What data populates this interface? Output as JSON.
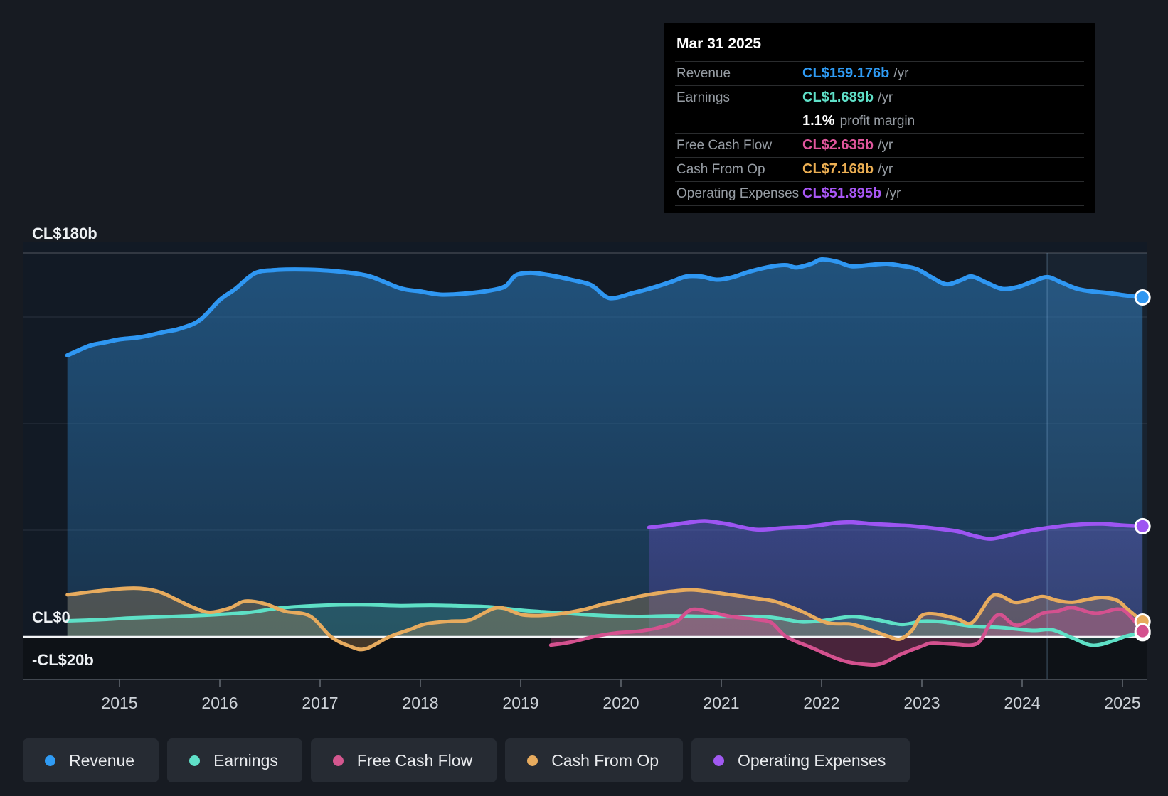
{
  "tooltip": {
    "date": "Mar 31 2025",
    "rows": [
      {
        "label": "Revenue",
        "value": "CL$159.176b",
        "suffix": "/yr",
        "color": "#2f9bf4"
      },
      {
        "label": "Earnings",
        "value": "CL$1.689b",
        "suffix": "/yr",
        "color": "#5fe0c8",
        "extra": {
          "value": "1.1%",
          "label": "profit margin"
        }
      },
      {
        "label": "Free Cash Flow",
        "value": "CL$2.635b",
        "suffix": "/yr",
        "color": "#e0569d"
      },
      {
        "label": "Cash From Op",
        "value": "CL$7.168b",
        "suffix": "/yr",
        "color": "#ecaf53"
      },
      {
        "label": "Operating Expenses",
        "value": "CL$51.895b",
        "suffix": "/yr",
        "color": "#a957f5"
      }
    ]
  },
  "y_axis": {
    "labels": [
      {
        "text": "CL$180b",
        "value": 180
      },
      {
        "text": "CL$0",
        "value": 0
      },
      {
        "text": "-CL$20b",
        "value": -20
      }
    ],
    "unlabeled_gridlines": [
      150,
      100,
      50
    ]
  },
  "x_axis": {
    "years": [
      "2015",
      "2016",
      "2017",
      "2018",
      "2019",
      "2020",
      "2021",
      "2022",
      "2023",
      "2024",
      "2025"
    ]
  },
  "legend": [
    {
      "label": "Revenue",
      "color": "#2f9bf4"
    },
    {
      "label": "Earnings",
      "color": "#5fe0c8"
    },
    {
      "label": "Free Cash Flow",
      "color": "#d4578f"
    },
    {
      "label": "Cash From Op",
      "color": "#e7ab5e"
    },
    {
      "label": "Operating Expenses",
      "color": "#a159f2"
    }
  ],
  "chart_data": {
    "type": "line",
    "title": "Earnings and revenue history (CL$ billions per year)",
    "x_range": [
      2014.35,
      2025.35
    ],
    "ylim": [
      -20,
      180
    ],
    "y_unit": "CL$b",
    "grid": true,
    "legend_position": "bottom",
    "highlight_band_start_year": 2024.25,
    "series": [
      {
        "name": "Revenue",
        "color": "#2f97f2",
        "points": [
          [
            2014.48,
            132
          ],
          [
            2014.7,
            136.5
          ],
          [
            2014.85,
            138
          ],
          [
            2015.0,
            139.5
          ],
          [
            2015.2,
            140.5
          ],
          [
            2015.45,
            143
          ],
          [
            2015.6,
            144.5
          ],
          [
            2015.8,
            148.5
          ],
          [
            2016.0,
            158
          ],
          [
            2016.15,
            163
          ],
          [
            2016.35,
            170.5
          ],
          [
            2016.55,
            172
          ],
          [
            2016.75,
            172.3
          ],
          [
            2017.0,
            172
          ],
          [
            2017.25,
            171
          ],
          [
            2017.5,
            169
          ],
          [
            2017.8,
            163.5
          ],
          [
            2018.0,
            162
          ],
          [
            2018.2,
            160.5
          ],
          [
            2018.45,
            161
          ],
          [
            2018.7,
            162.5
          ],
          [
            2018.85,
            164.5
          ],
          [
            2018.95,
            169.5
          ],
          [
            2019.1,
            170.7
          ],
          [
            2019.3,
            169.5
          ],
          [
            2019.5,
            167.5
          ],
          [
            2019.7,
            165
          ],
          [
            2019.85,
            159.5
          ],
          [
            2019.95,
            159
          ],
          [
            2020.1,
            161
          ],
          [
            2020.3,
            163.5
          ],
          [
            2020.5,
            166.5
          ],
          [
            2020.65,
            169
          ],
          [
            2020.8,
            169
          ],
          [
            2020.95,
            167.5
          ],
          [
            2021.1,
            168.5
          ],
          [
            2021.3,
            171.5
          ],
          [
            2021.5,
            173.7
          ],
          [
            2021.65,
            174.3
          ],
          [
            2021.75,
            173.2
          ],
          [
            2021.9,
            175
          ],
          [
            2022.0,
            177
          ],
          [
            2022.15,
            176
          ],
          [
            2022.3,
            173.8
          ],
          [
            2022.5,
            174.5
          ],
          [
            2022.65,
            175
          ],
          [
            2022.8,
            174
          ],
          [
            2022.95,
            172.5
          ],
          [
            2023.1,
            168.5
          ],
          [
            2023.25,
            165.3
          ],
          [
            2023.4,
            167.5
          ],
          [
            2023.5,
            169
          ],
          [
            2023.65,
            166
          ],
          [
            2023.8,
            163.2
          ],
          [
            2023.95,
            164
          ],
          [
            2024.1,
            166.5
          ],
          [
            2024.25,
            168.7
          ],
          [
            2024.4,
            166
          ],
          [
            2024.55,
            163.2
          ],
          [
            2024.7,
            162
          ],
          [
            2024.85,
            161.3
          ],
          [
            2025.0,
            160.3
          ],
          [
            2025.2,
            159.176
          ]
        ]
      },
      {
        "name": "Operating Expenses",
        "color": "#9d55f2",
        "points": [
          [
            2020.28,
            51.3
          ],
          [
            2020.5,
            52.5
          ],
          [
            2020.7,
            53.8
          ],
          [
            2020.85,
            54.3
          ],
          [
            2021.05,
            53
          ],
          [
            2021.35,
            50.3
          ],
          [
            2021.6,
            51
          ],
          [
            2021.8,
            51.5
          ],
          [
            2022.0,
            52.5
          ],
          [
            2022.15,
            53.5
          ],
          [
            2022.3,
            53.8
          ],
          [
            2022.5,
            53
          ],
          [
            2022.7,
            52.5
          ],
          [
            2022.9,
            52
          ],
          [
            2023.1,
            51
          ],
          [
            2023.35,
            49.5
          ],
          [
            2023.55,
            47
          ],
          [
            2023.7,
            46
          ],
          [
            2023.9,
            48
          ],
          [
            2024.1,
            50
          ],
          [
            2024.4,
            52
          ],
          [
            2024.6,
            52.8
          ],
          [
            2024.8,
            53
          ],
          [
            2025.0,
            52.3
          ],
          [
            2025.2,
            51.895
          ]
        ]
      },
      {
        "name": "Earnings",
        "color": "#5ee0c6",
        "points": [
          [
            2014.48,
            7.5
          ],
          [
            2014.8,
            8
          ],
          [
            2015.1,
            8.8
          ],
          [
            2015.4,
            9.3
          ],
          [
            2015.7,
            9.8
          ],
          [
            2016.0,
            10.5
          ],
          [
            2016.3,
            11.5
          ],
          [
            2016.6,
            13.5
          ],
          [
            2016.9,
            14.5
          ],
          [
            2017.2,
            15
          ],
          [
            2017.5,
            15
          ],
          [
            2017.8,
            14.6
          ],
          [
            2018.1,
            14.8
          ],
          [
            2018.4,
            14.5
          ],
          [
            2018.7,
            14
          ],
          [
            2019.0,
            12.5
          ],
          [
            2019.3,
            11.5
          ],
          [
            2019.6,
            10.5
          ],
          [
            2019.9,
            9.8
          ],
          [
            2020.2,
            9.5
          ],
          [
            2020.5,
            9.8
          ],
          [
            2020.8,
            9.6
          ],
          [
            2021.1,
            9.4
          ],
          [
            2021.4,
            9.5
          ],
          [
            2021.6,
            8.5
          ],
          [
            2021.8,
            7
          ],
          [
            2022.0,
            7.5
          ],
          [
            2022.3,
            9.4
          ],
          [
            2022.55,
            8
          ],
          [
            2022.8,
            5.8
          ],
          [
            2023.0,
            7.3
          ],
          [
            2023.2,
            7
          ],
          [
            2023.5,
            5
          ],
          [
            2023.8,
            4.3
          ],
          [
            2024.1,
            3
          ],
          [
            2024.3,
            3.3
          ],
          [
            2024.5,
            -0.5
          ],
          [
            2024.7,
            -4
          ],
          [
            2024.9,
            -2
          ],
          [
            2025.05,
            0.5
          ],
          [
            2025.2,
            1.689
          ]
        ]
      },
      {
        "name": "Cash From Op",
        "color": "#e7ab5e",
        "points": [
          [
            2014.48,
            19.7
          ],
          [
            2014.7,
            21
          ],
          [
            2015.0,
            22.5
          ],
          [
            2015.2,
            22.7
          ],
          [
            2015.4,
            21
          ],
          [
            2015.6,
            16.7
          ],
          [
            2015.75,
            13.5
          ],
          [
            2015.9,
            11.5
          ],
          [
            2016.1,
            13.5
          ],
          [
            2016.25,
            16.7
          ],
          [
            2016.45,
            15.5
          ],
          [
            2016.65,
            12
          ],
          [
            2016.9,
            9.7
          ],
          [
            2017.11,
            0
          ],
          [
            2017.3,
            -4.5
          ],
          [
            2017.45,
            -5.7
          ],
          [
            2017.69,
            0
          ],
          [
            2017.9,
            3.5
          ],
          [
            2018.05,
            6
          ],
          [
            2018.3,
            7.3
          ],
          [
            2018.5,
            8
          ],
          [
            2018.77,
            13.7
          ],
          [
            2019.02,
            10.3
          ],
          [
            2019.3,
            10.3
          ],
          [
            2019.6,
            12.5
          ],
          [
            2019.82,
            15.3
          ],
          [
            2020.0,
            17
          ],
          [
            2020.22,
            19.3
          ],
          [
            2020.45,
            21
          ],
          [
            2020.7,
            22
          ],
          [
            2020.9,
            21
          ],
          [
            2021.1,
            19.7
          ],
          [
            2021.35,
            18
          ],
          [
            2021.55,
            16.4
          ],
          [
            2021.8,
            12
          ],
          [
            2022.05,
            6.6
          ],
          [
            2022.3,
            5.9
          ],
          [
            2022.5,
            3
          ],
          [
            2022.65,
            0.5
          ],
          [
            2022.78,
            -1.1
          ],
          [
            2022.9,
            3
          ],
          [
            2023.0,
            10
          ],
          [
            2023.15,
            10.6
          ],
          [
            2023.35,
            8.5
          ],
          [
            2023.5,
            6.6
          ],
          [
            2023.68,
            18.3
          ],
          [
            2023.78,
            19.3
          ],
          [
            2023.92,
            16.2
          ],
          [
            2024.05,
            17
          ],
          [
            2024.2,
            18.9
          ],
          [
            2024.35,
            17
          ],
          [
            2024.5,
            16.2
          ],
          [
            2024.65,
            17.5
          ],
          [
            2024.8,
            18.5
          ],
          [
            2024.95,
            17
          ],
          [
            2025.05,
            13
          ],
          [
            2025.2,
            7.168
          ]
        ]
      },
      {
        "name": "Free Cash Flow",
        "color": "#d4518f",
        "points": [
          [
            2019.3,
            -3.9
          ],
          [
            2019.5,
            -2.5
          ],
          [
            2019.75,
            0.3
          ],
          [
            2019.95,
            1.8
          ],
          [
            2020.15,
            2.5
          ],
          [
            2020.35,
            4
          ],
          [
            2020.55,
            7
          ],
          [
            2020.7,
            12.7
          ],
          [
            2020.9,
            11.5
          ],
          [
            2021.1,
            9.5
          ],
          [
            2021.35,
            8.1
          ],
          [
            2021.5,
            6.6
          ],
          [
            2021.65,
            0
          ],
          [
            2021.9,
            -5.1
          ],
          [
            2022.2,
            -11
          ],
          [
            2022.45,
            -13
          ],
          [
            2022.6,
            -12.5
          ],
          [
            2022.8,
            -8
          ],
          [
            2023.0,
            -4.4
          ],
          [
            2023.1,
            -2.9
          ],
          [
            2023.3,
            -3.4
          ],
          [
            2023.55,
            -3.2
          ],
          [
            2023.68,
            6.4
          ],
          [
            2023.78,
            10.4
          ],
          [
            2023.95,
            5.4
          ],
          [
            2024.2,
            11
          ],
          [
            2024.35,
            12
          ],
          [
            2024.5,
            13.7
          ],
          [
            2024.73,
            11
          ],
          [
            2024.95,
            13
          ],
          [
            2025.05,
            11
          ],
          [
            2025.2,
            2.635
          ]
        ]
      }
    ]
  }
}
